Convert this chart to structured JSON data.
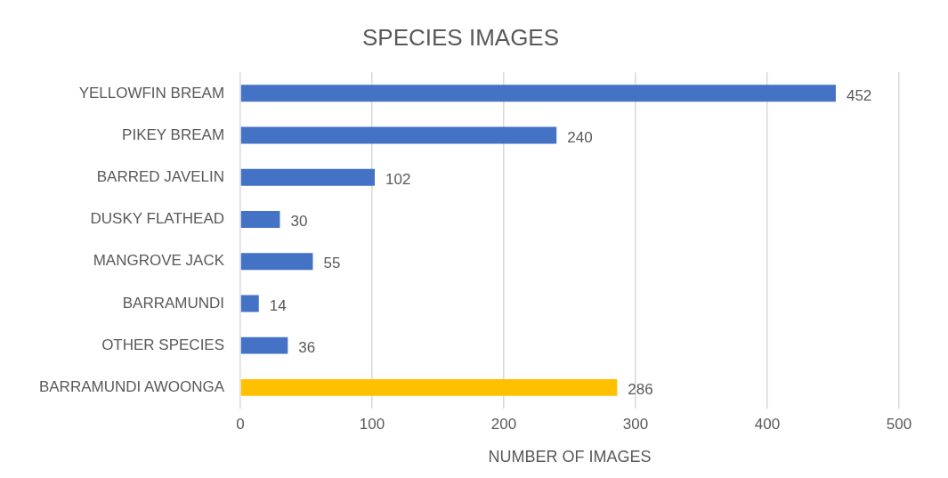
{
  "chart_data": {
    "type": "bar",
    "orientation": "horizontal",
    "title": "SPECIES IMAGES",
    "xlabel": "NUMBER OF IMAGES",
    "categories": [
      "YELLOWFIN BREAM",
      "PIKEY BREAM",
      "BARRED JAVELIN",
      "DUSKY FLATHEAD",
      "MANGROVE JACK",
      "BARRAMUNDI",
      "OTHER SPECIES",
      "BARRAMUNDI AWOONGA"
    ],
    "values": [
      452,
      240,
      102,
      30,
      55,
      14,
      36,
      286
    ],
    "colors": [
      "#4472c4",
      "#4472c4",
      "#4472c4",
      "#4472c4",
      "#4472c4",
      "#4472c4",
      "#4472c4",
      "#ffc000"
    ],
    "xlim": [
      0,
      500
    ],
    "xticks": [
      0,
      100,
      200,
      300,
      400,
      500
    ],
    "grid": "x",
    "data_labels": true,
    "legend": false
  }
}
